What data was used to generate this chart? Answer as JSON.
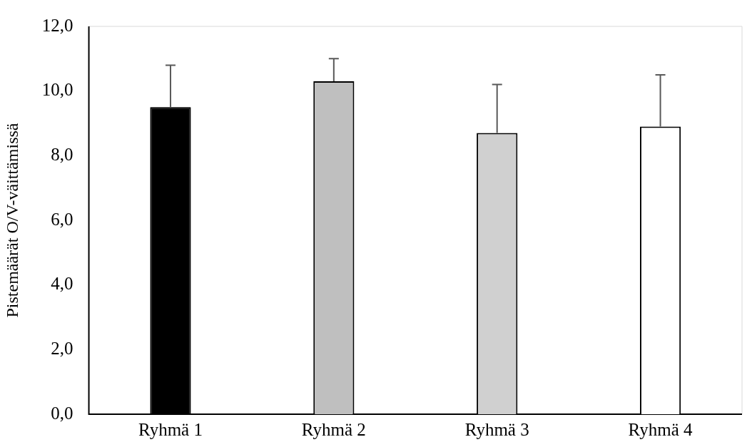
{
  "chart_data": {
    "type": "bar",
    "ylabel": "Pistemäärät O/V-väittämissä",
    "categories": [
      "Ryhmä 1",
      "Ryhmä 2",
      "Ryhmä 3",
      "Ryhmä 4"
    ],
    "values": [
      9.5,
      10.3,
      8.7,
      8.9
    ],
    "colors": [
      "#000000",
      "#bfbfbf",
      "#d0d0d0",
      "#ffffff"
    ],
    "errors": [
      [
        9.5,
        10.8
      ],
      [
        10.3,
        11.0
      ],
      [
        8.7,
        10.2
      ],
      [
        8.9,
        10.5
      ]
    ],
    "ylim": [
      0,
      12
    ],
    "yticks": [
      {
        "value": 0,
        "label": "0,0"
      },
      {
        "value": 2,
        "label": "2,0"
      },
      {
        "value": 4,
        "label": "4,0"
      },
      {
        "value": 6,
        "label": "6,0"
      },
      {
        "value": 8,
        "label": "8,0"
      },
      {
        "value": 10,
        "label": "10,0"
      },
      {
        "value": 12,
        "label": "12,0"
      }
    ],
    "grid": false,
    "legend": false
  }
}
